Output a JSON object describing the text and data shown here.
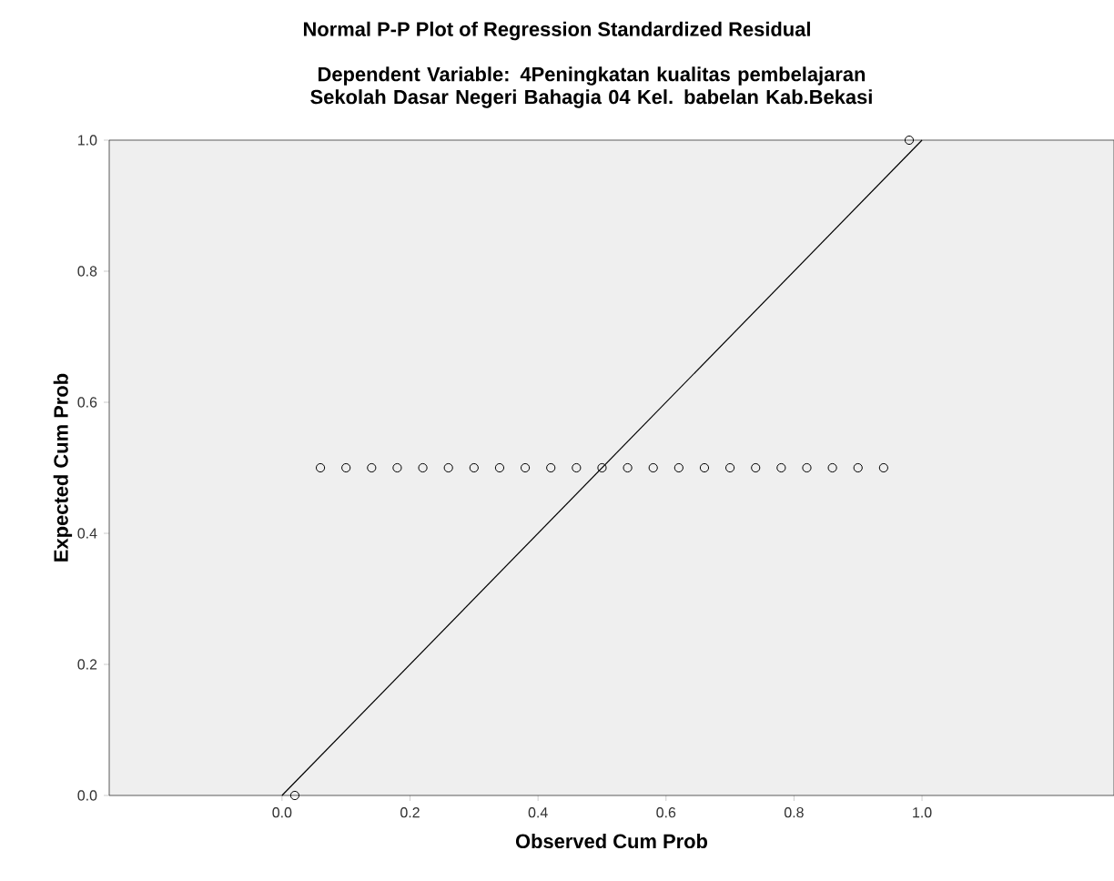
{
  "chart_data": {
    "type": "scatter",
    "title": "Normal P-P Plot of Regression Standardized Residual",
    "subtitle": "Dependent Variable: 4Peningkatan kualitas pembelajaran  Sekolah Dasar Negeri Bahagia 04 Kel. babelan Kab.Bekasi",
    "xlabel": "Observed Cum Prob",
    "ylabel": "Expected Cum Prob",
    "xlim": [
      -0.27,
      1.3
    ],
    "ylim": [
      0,
      1
    ],
    "xticks": [
      {
        "value": 0,
        "label": "0.0"
      },
      {
        "value": 0.2,
        "label": "0.2"
      },
      {
        "value": 0.4,
        "label": "0.4"
      },
      {
        "value": 0.6,
        "label": "0.6"
      },
      {
        "value": 0.8,
        "label": "0.8"
      },
      {
        "value": 1,
        "label": "1.0"
      }
    ],
    "yticks": [
      {
        "value": 0,
        "label": "0.0"
      },
      {
        "value": 0.2,
        "label": "0.2"
      },
      {
        "value": 0.4,
        "label": "0.4"
      },
      {
        "value": 0.6,
        "label": "0.6"
      },
      {
        "value": 0.8,
        "label": "0.8"
      },
      {
        "value": 1,
        "label": "1.0"
      }
    ],
    "grid": false,
    "series": [
      {
        "marker": "circle",
        "color": "#000000",
        "x": [
          0.02,
          0.06,
          0.1,
          0.14,
          0.18,
          0.22,
          0.26,
          0.3,
          0.34,
          0.38,
          0.42,
          0.46,
          0.5,
          0.54,
          0.58,
          0.62,
          0.66,
          0.7,
          0.74,
          0.78,
          0.82,
          0.86,
          0.9,
          0.94,
          0.98
        ],
        "values": [
          0,
          0.5,
          0.5,
          0.5,
          0.5,
          0.5,
          0.5,
          0.5,
          0.5,
          0.5,
          0.5,
          0.5,
          0.5,
          0.5,
          0.5,
          0.5,
          0.5,
          0.5,
          0.5,
          0.5,
          0.5,
          0.5,
          0.5,
          0.5,
          1
        ]
      },
      {
        "type": "line",
        "marker": "none",
        "color": "#000000",
        "x": [
          0,
          1
        ],
        "values": [
          0,
          1
        ]
      }
    ]
  }
}
